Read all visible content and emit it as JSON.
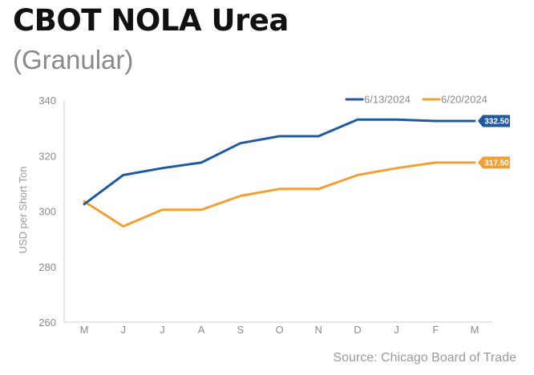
{
  "header": {
    "title": "CBOT NOLA Urea",
    "subtitle": "(Granular)"
  },
  "footer": {
    "source": "Source: Chicago Board of Trade"
  },
  "colors": {
    "series1": "#1f5a9e",
    "series2": "#f2a033",
    "axis": "#cfcfcf"
  },
  "chart_data": {
    "type": "line",
    "title": "CBOT NOLA Urea",
    "subtitle": "(Granular)",
    "xlabel": "",
    "ylabel": "USD per Short Ton",
    "categories": [
      "M",
      "J",
      "J",
      "A",
      "S",
      "O",
      "N",
      "D",
      "J",
      "F",
      "M"
    ],
    "yticks": [
      260,
      280,
      300,
      320,
      340
    ],
    "ylim": [
      260,
      340
    ],
    "grid": false,
    "legend_position": "top-right",
    "series": [
      {
        "name": "6/13/2024",
        "color": "#1f5a9e",
        "values": [
          302.5,
          313,
          315.5,
          317.5,
          324.5,
          327,
          327,
          333,
          333,
          332.5,
          332.5
        ],
        "end_label": "332.50"
      },
      {
        "name": "6/20/2024",
        "color": "#f2a033",
        "values": [
          303.5,
          294.5,
          300.5,
          300.5,
          305.5,
          308,
          308,
          313,
          315.5,
          317.5,
          317.5
        ],
        "end_label": "317.50"
      }
    ]
  }
}
